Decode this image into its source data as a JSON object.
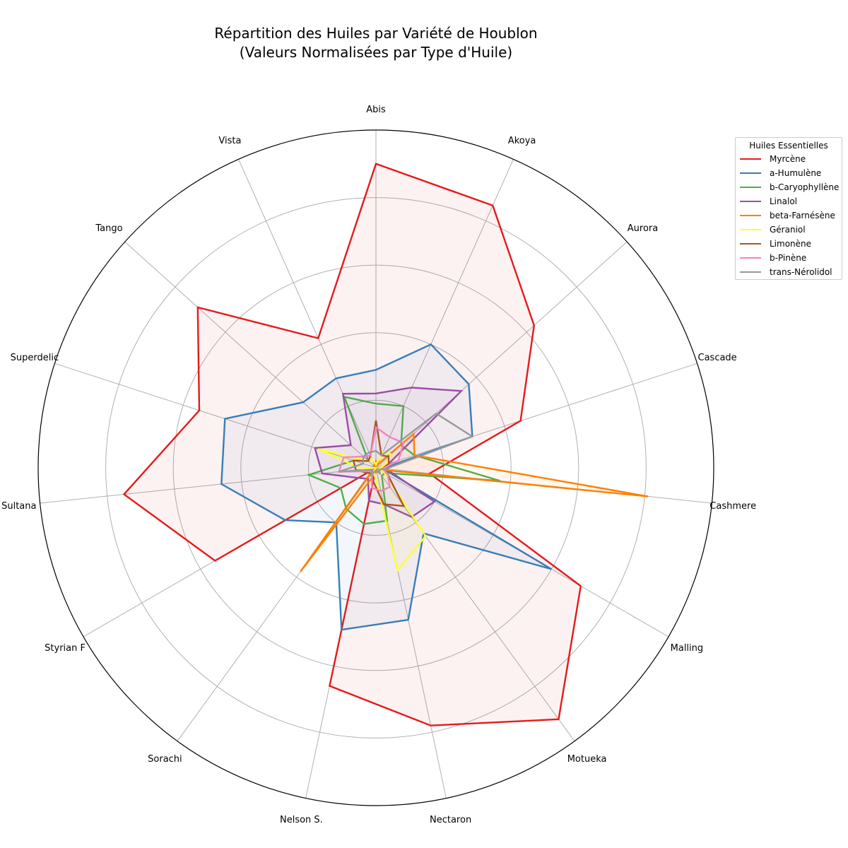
{
  "chart_data": {
    "type": "radar",
    "title": "Répartition des Huiles par Variété de Houblon",
    "subtitle": "(Valeurs Normalisées par Type d'Huile)",
    "legend_title": "Huiles Essentielles",
    "legend_position": "top-right",
    "rlim": [
      0,
      1
    ],
    "grid": true,
    "categories": [
      "Abis",
      "Akoya",
      "Aurora",
      "Cascade",
      "Cashmere",
      "Malling",
      "Motueka",
      "Nectaron",
      "Nelson S.",
      "Sorachi",
      "Styrian F",
      "Sultana",
      "Superdelic",
      "Tango",
      "Vista"
    ],
    "series": [
      {
        "name": "Myrcène",
        "color": "#e41a1c",
        "fill": true,
        "values": [
          0.9,
          0.85,
          0.63,
          0.45,
          0.16,
          0.7,
          0.92,
          0.78,
          0.66,
          0.0,
          0.55,
          0.75,
          0.55,
          0.71,
          0.42
        ]
      },
      {
        "name": "a-Humulène",
        "color": "#377eb8",
        "fill": true,
        "values": [
          0.29,
          0.4,
          0.37,
          0.3,
          0.02,
          0.6,
          0.24,
          0.46,
          0.49,
          0.2,
          0.31,
          0.46,
          0.47,
          0.29,
          0.29
        ]
      },
      {
        "name": "b-Caryophyllène",
        "color": "#4daf4a",
        "fill": false,
        "values": [
          0.19,
          0.2,
          0.1,
          0.12,
          0.37,
          0.03,
          0.03,
          0.16,
          0.17,
          0.15,
          0.12,
          0.2,
          0.07,
          0.03,
          0.23
        ]
      },
      {
        "name": "Linalol",
        "color": "#984ea3",
        "fill": true,
        "values": [
          0.22,
          0.26,
          0.34,
          0.04,
          0.03,
          0.2,
          0.18,
          0.11,
          0.1,
          0.04,
          0.06,
          0.16,
          0.19,
          0.1,
          0.24
        ]
      },
      {
        "name": "beta-Farnésène",
        "color": "#ff7f00",
        "fill": true,
        "values": [
          0.02,
          0.01,
          0.15,
          0.12,
          0.81,
          0.01,
          0.02,
          0.01,
          0.02,
          0.38,
          0.01,
          0.01,
          0.0,
          0.01,
          0.01
        ]
      },
      {
        "name": "Géraniol",
        "color": "#ffff33",
        "fill": true,
        "values": [
          0.01,
          0.05,
          0.06,
          0.03,
          0.01,
          0.03,
          0.25,
          0.31,
          0.02,
          0.01,
          0.0,
          0.04,
          0.18,
          0.03,
          0.03
        ]
      },
      {
        "name": "Limonène",
        "color": "#a65628",
        "fill": false,
        "values": [
          0.14,
          0.04,
          0.05,
          0.04,
          0.02,
          0.04,
          0.14,
          0.11,
          0.04,
          0.02,
          0.03,
          0.06,
          0.07,
          0.03,
          0.04
        ]
      },
      {
        "name": "b-Pinène",
        "color": "#f781bf",
        "fill": false,
        "values": [
          0.12,
          0.1,
          0.11,
          0.07,
          0.02,
          0.04,
          0.07,
          0.07,
          0.06,
          0.02,
          0.02,
          0.11,
          0.1,
          0.05,
          0.04
        ]
      },
      {
        "name": "trans-Nérolidol",
        "color": "#999999",
        "fill": false,
        "values": [
          0.05,
          0.04,
          0.24,
          0.3,
          0.03,
          0.01,
          0.02,
          0.01,
          0.01,
          0.03,
          0.01,
          0.11,
          0.04,
          0.05,
          0.05
        ]
      }
    ]
  }
}
